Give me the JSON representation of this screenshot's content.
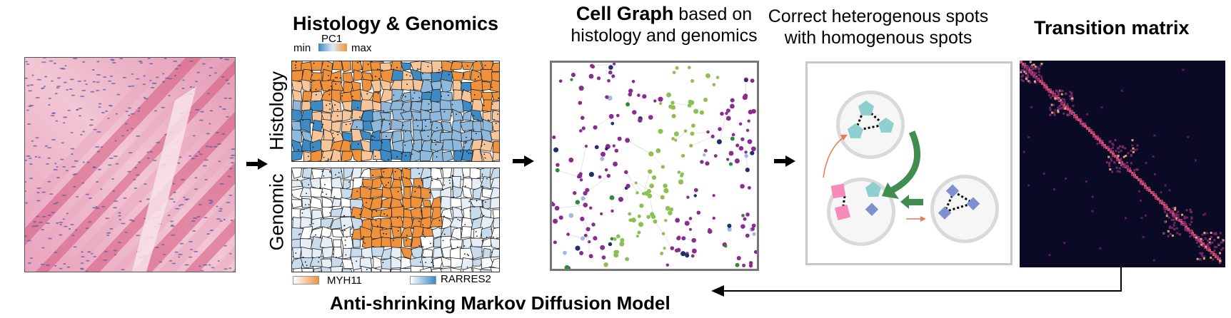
{
  "titles": {
    "histology_genomics": "Histology & Genomics",
    "cell_graph_bold": "Cell Graph",
    "cell_graph_rest": " based on",
    "cell_graph_line2": "histology and genomics",
    "correct_line1": "Correct heterogenous spots",
    "correct_line2": "with homogenous spots",
    "transition": "Transition matrix",
    "bottom": "Anti-shrinking Markov Diffusion Model"
  },
  "colorbar": {
    "min": "min",
    "max": "max",
    "label": "PC1"
  },
  "row_labels": {
    "histology": "Histology",
    "genomic": "Genomic"
  },
  "legend": {
    "gene1": "MYH11",
    "gene2": "RARRES2"
  },
  "colors": {
    "orange": "#f0923c",
    "blue": "#3d8ac4",
    "light_blue": "#c9dcee",
    "purple": "#8a2b8f",
    "green": "#8cc152",
    "navy": "#1f2f6e",
    "dark_green": "#2d8a3a",
    "teal": "#8fcfcf",
    "pink": "#f48bb8",
    "periwinkle": "#7f8fd0",
    "matrix_bg": "#0b0a24",
    "matrix_diag": "#d44a6a"
  }
}
